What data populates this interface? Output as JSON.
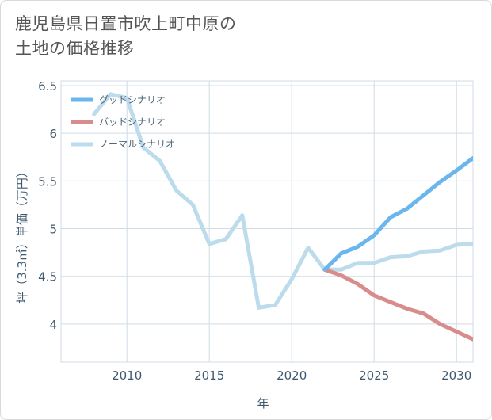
{
  "title_lines": [
    "鹿児島県日置市吹上町中原の",
    "土地の価格推移"
  ],
  "chart_data": {
    "type": "line",
    "xlabel": "年",
    "ylabel": "坪（3.3㎡）単価（万円）",
    "xlim": [
      2006,
      2031
    ],
    "ylim": [
      3.6,
      6.55
    ],
    "x_ticks": [
      2010,
      2015,
      2020,
      2025,
      2030
    ],
    "y_ticks": [
      4,
      4.5,
      5,
      5.5,
      6,
      6.5
    ],
    "y_tick_labels": [
      "4",
      "4.5",
      "5",
      "5.5",
      "6",
      "6.5"
    ],
    "grid": true,
    "legend_position": "top-left",
    "series": [
      {
        "name": "グッドシナリオ",
        "color": "#6bb6ec",
        "points": [
          [
            2022,
            4.57
          ],
          [
            2023,
            4.74
          ],
          [
            2024,
            4.81
          ],
          [
            2025,
            4.93
          ],
          [
            2026,
            5.12
          ],
          [
            2027,
            5.21
          ],
          [
            2028,
            5.35
          ],
          [
            2029,
            5.49
          ],
          [
            2030,
            5.61
          ],
          [
            2031,
            5.74
          ]
        ]
      },
      {
        "name": "バッドシナリオ",
        "color": "#d98c8c",
        "points": [
          [
            2022,
            4.57
          ],
          [
            2023,
            4.51
          ],
          [
            2024,
            4.42
          ],
          [
            2025,
            4.3
          ],
          [
            2026,
            4.23
          ],
          [
            2027,
            4.16
          ],
          [
            2028,
            4.11
          ],
          [
            2029,
            4.0
          ],
          [
            2030,
            3.92
          ],
          [
            2031,
            3.84
          ]
        ]
      },
      {
        "name": "ノーマルシナリオ",
        "color": "#bcdcec",
        "points": [
          [
            2008,
            6.2
          ],
          [
            2009,
            6.41
          ],
          [
            2010,
            6.37
          ],
          [
            2011,
            5.85
          ],
          [
            2012,
            5.71
          ],
          [
            2013,
            5.4
          ],
          [
            2014,
            5.25
          ],
          [
            2015,
            4.84
          ],
          [
            2016,
            4.89
          ],
          [
            2017,
            5.14
          ],
          [
            2018,
            4.17
          ],
          [
            2019,
            4.2
          ],
          [
            2020,
            4.47
          ],
          [
            2021,
            4.8
          ],
          [
            2022,
            4.57
          ],
          [
            2023,
            4.57
          ],
          [
            2024,
            4.64
          ],
          [
            2025,
            4.64
          ],
          [
            2026,
            4.7
          ],
          [
            2027,
            4.71
          ],
          [
            2028,
            4.76
          ],
          [
            2029,
            4.77
          ],
          [
            2030,
            4.83
          ],
          [
            2031,
            4.84
          ]
        ]
      }
    ]
  }
}
